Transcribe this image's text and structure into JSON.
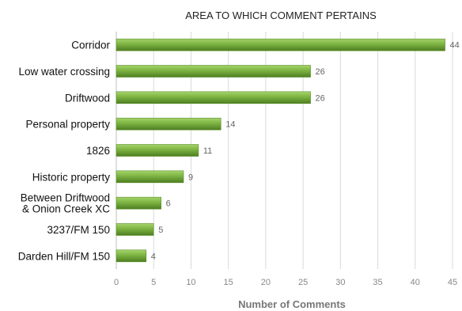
{
  "chart_data": {
    "type": "bar",
    "orientation": "horizontal",
    "title": "AREA TO WHICH COMMENT PERTAINS",
    "xlabel": "Number of Comments",
    "ylabel": "",
    "xlim": [
      0,
      45
    ],
    "xticks": [
      "0",
      "5",
      "10",
      "15",
      "20",
      "25",
      "30",
      "35",
      "40",
      "45"
    ],
    "grid": true,
    "legend": "none",
    "bar_color": "#7cb342",
    "categories": [
      [
        "Corridor"
      ],
      [
        "Low water crossing"
      ],
      [
        "Driftwood"
      ],
      [
        "Personal property"
      ],
      [
        "1826"
      ],
      [
        "Historic property"
      ],
      [
        "Between Driftwood",
        "& Onion Creek XC"
      ],
      [
        "3237/FM 150"
      ],
      [
        "Darden Hill/FM 150"
      ]
    ],
    "values": [
      44,
      26,
      26,
      14,
      11,
      9,
      6,
      5,
      4
    ],
    "value_labels": [
      "44",
      "26",
      "26",
      "14",
      "11",
      "9",
      "6",
      "5",
      "4"
    ]
  }
}
